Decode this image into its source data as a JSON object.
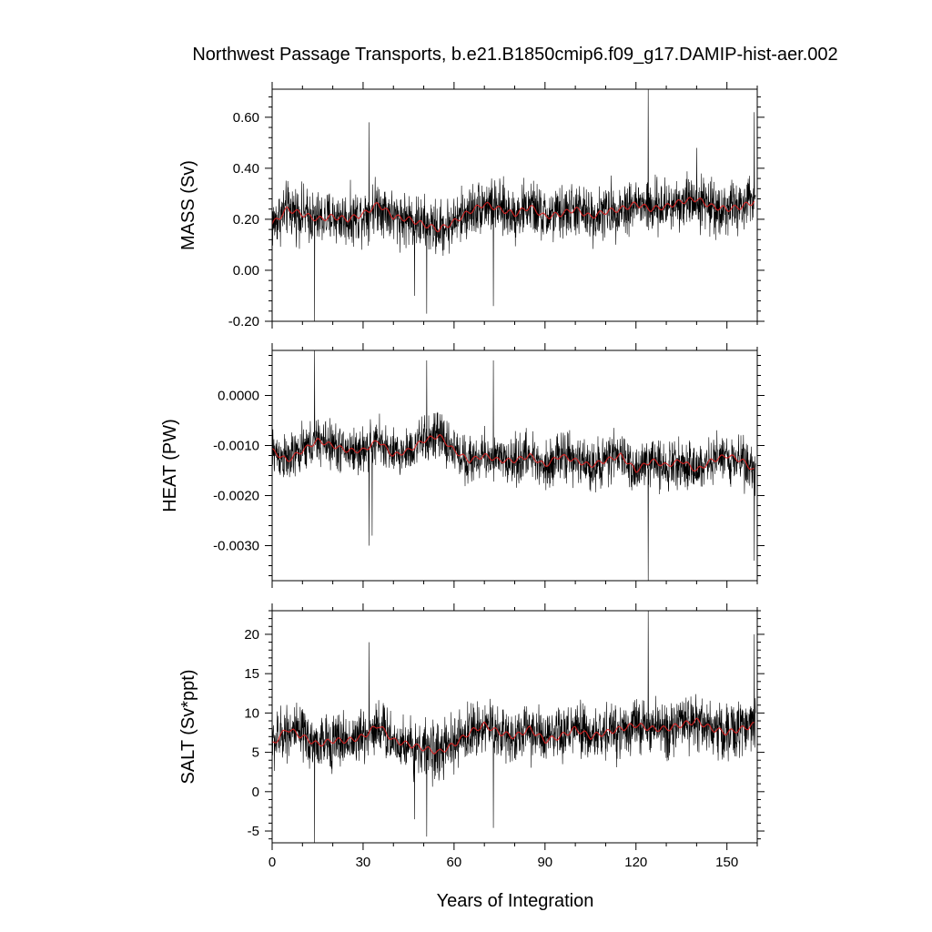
{
  "title": "Northwest Passage Transports, b.e21.B1850cmip6.f09_g17.DAMIP-hist-aer.002",
  "xlabel": "Years of Integration",
  "colors": {
    "raw": "#000000",
    "smooth": "#e02020",
    "frame": "#000000"
  },
  "chart_data": [
    {
      "type": "line",
      "panel": "mass",
      "ylabel": "MASS (Sv)",
      "xlim": [
        0,
        160
      ],
      "ylim": [
        -0.2,
        0.71
      ],
      "yticks": [
        -0.2,
        0.0,
        0.2,
        0.4,
        0.6
      ],
      "ytick_labels": [
        "-0.20",
        "0.00",
        "0.20",
        "0.40",
        "0.60"
      ],
      "xticks": [
        0,
        30,
        60,
        90,
        120,
        150
      ],
      "xtick_labels": [],
      "series": [
        {
          "style": "raw-monthly",
          "x_step": 0.0833,
          "smooth_years": [
            0,
            5,
            10,
            15,
            20,
            25,
            30,
            35,
            40,
            45,
            50,
            55,
            60,
            65,
            70,
            75,
            80,
            85,
            90,
            95,
            100,
            105,
            110,
            115,
            120,
            125,
            130,
            135,
            140,
            145,
            150,
            155,
            159
          ],
          "smooth_values": [
            0.18,
            0.24,
            0.22,
            0.2,
            0.21,
            0.2,
            0.22,
            0.26,
            0.21,
            0.2,
            0.18,
            0.16,
            0.19,
            0.23,
            0.26,
            0.24,
            0.22,
            0.25,
            0.21,
            0.22,
            0.24,
            0.21,
            0.23,
            0.24,
            0.26,
            0.24,
            0.25,
            0.27,
            0.28,
            0.25,
            0.24,
            0.25,
            0.27
          ],
          "spread": 0.09,
          "spikes": [
            [
              14,
              -0.2
            ],
            [
              32,
              0.58
            ],
            [
              51,
              -0.17
            ],
            [
              73,
              -0.14
            ],
            [
              124,
              0.71
            ],
            [
              159,
              0.62
            ],
            [
              47,
              -0.1
            ],
            [
              140,
              0.48
            ]
          ]
        },
        {
          "style": "smoothed",
          "name": ""
        }
      ]
    },
    {
      "type": "line",
      "panel": "heat",
      "ylabel": "HEAT (PW)",
      "xlim": [
        0,
        160
      ],
      "ylim": [
        -0.0037,
        0.0009
      ],
      "yticks": [
        -0.003,
        -0.002,
        -0.001,
        0.0
      ],
      "ytick_labels": [
        "-0.0030",
        "-0.0020",
        "-0.0010",
        "0.0000"
      ],
      "xticks": [
        0,
        30,
        60,
        90,
        120,
        150
      ],
      "xtick_labels": [],
      "series": [
        {
          "style": "raw-monthly",
          "x_step": 0.0833,
          "smooth_years": [
            0,
            5,
            10,
            15,
            20,
            25,
            30,
            35,
            40,
            45,
            50,
            55,
            60,
            65,
            70,
            75,
            80,
            85,
            90,
            95,
            100,
            105,
            110,
            115,
            120,
            125,
            130,
            135,
            140,
            145,
            150,
            155,
            159
          ],
          "smooth_values": [
            -0.0011,
            -0.0013,
            -0.0011,
            -0.0009,
            -0.001,
            -0.0011,
            -0.0011,
            -0.0009,
            -0.0012,
            -0.0011,
            -0.0009,
            -0.0008,
            -0.0011,
            -0.0013,
            -0.0012,
            -0.0013,
            -0.0013,
            -0.0012,
            -0.0014,
            -0.0012,
            -0.0013,
            -0.0014,
            -0.0013,
            -0.0012,
            -0.0015,
            -0.0013,
            -0.0014,
            -0.0013,
            -0.0015,
            -0.0013,
            -0.0012,
            -0.0013,
            -0.0015
          ],
          "spread": 0.0004,
          "spikes": [
            [
              14,
              0.0009
            ],
            [
              32,
              -0.003
            ],
            [
              51,
              0.0007
            ],
            [
              73,
              0.0007
            ],
            [
              124,
              -0.0037
            ],
            [
              159,
              -0.0033
            ],
            [
              33,
              -0.0028
            ]
          ]
        },
        {
          "style": "smoothed",
          "name": ""
        }
      ]
    },
    {
      "type": "line",
      "panel": "salt",
      "ylabel": "SALT (Sv*ppt)",
      "xlim": [
        0,
        160
      ],
      "ylim": [
        -6.5,
        23
      ],
      "yticks": [
        -5,
        0,
        5,
        10,
        15,
        20
      ],
      "ytick_labels": [
        "-5",
        "0",
        "5",
        "10",
        "15",
        "20"
      ],
      "xticks": [
        0,
        30,
        60,
        90,
        120,
        150
      ],
      "xtick_labels": [
        "0",
        "30",
        "60",
        "90",
        "120",
        "150"
      ],
      "series": [
        {
          "style": "raw-monthly",
          "x_step": 0.0833,
          "smooth_years": [
            0,
            5,
            10,
            15,
            20,
            25,
            30,
            35,
            40,
            45,
            50,
            55,
            60,
            65,
            70,
            75,
            80,
            85,
            90,
            95,
            100,
            105,
            110,
            115,
            120,
            125,
            130,
            135,
            140,
            145,
            150,
            155,
            159
          ],
          "smooth_values": [
            6,
            8,
            7,
            6,
            6.5,
            6.5,
            7,
            8.5,
            6.5,
            6,
            5.5,
            5,
            6,
            7.5,
            8.5,
            7.5,
            7,
            8,
            6.5,
            7,
            8,
            7,
            7.5,
            8,
            8.5,
            8,
            8,
            8.5,
            9,
            8,
            7.5,
            8,
            8.5
          ],
          "spread": 3,
          "spikes": [
            [
              14,
              -6.5
            ],
            [
              32,
              19
            ],
            [
              51,
              -5.7
            ],
            [
              73,
              -4.6
            ],
            [
              124,
              23
            ],
            [
              159,
              20
            ],
            [
              47,
              -3.5
            ]
          ]
        },
        {
          "style": "smoothed",
          "name": ""
        }
      ]
    }
  ]
}
